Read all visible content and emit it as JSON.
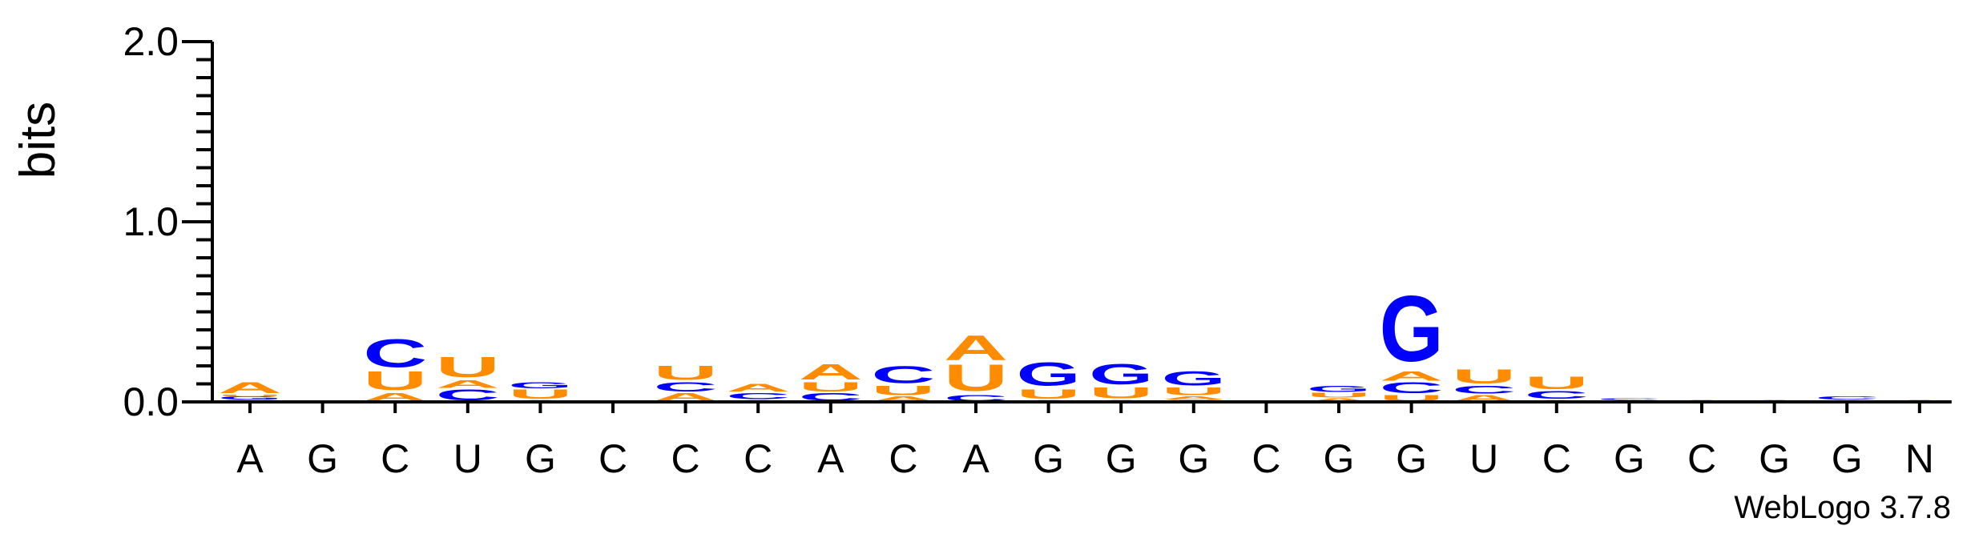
{
  "chart_data": {
    "type": "sequence-logo",
    "ylabel": "bits",
    "ylim": [
      0,
      2.0
    ],
    "yticks": [
      "0.0",
      "1.0",
      "2.0"
    ],
    "colors": {
      "A": "#ff8c00",
      "U": "#ff8c00",
      "C": "#0000ff",
      "G": "#0000ff"
    },
    "positions": [
      {
        "label": "A",
        "stack": [
          [
            "C",
            0.01
          ],
          [
            "G",
            0.02
          ],
          [
            "U",
            0.01
          ],
          [
            "A",
            0.07
          ]
        ]
      },
      {
        "label": "G",
        "stack": []
      },
      {
        "label": "C",
        "stack": [
          [
            "A",
            0.05
          ],
          [
            "U",
            0.12
          ],
          [
            "C",
            0.18
          ]
        ]
      },
      {
        "label": "U",
        "stack": [
          [
            "C",
            0.07
          ],
          [
            "A",
            0.05
          ],
          [
            "U",
            0.13
          ]
        ]
      },
      {
        "label": "G",
        "stack": [
          [
            "A",
            0.01
          ],
          [
            "U",
            0.06
          ],
          [
            "G",
            0.04
          ]
        ]
      },
      {
        "label": "C",
        "stack": []
      },
      {
        "label": "C",
        "stack": [
          [
            "A",
            0.05
          ],
          [
            "C",
            0.06
          ],
          [
            "U",
            0.09
          ]
        ]
      },
      {
        "label": "C",
        "stack": [
          [
            "A",
            0.01
          ],
          [
            "C",
            0.04
          ],
          [
            "A",
            0.05
          ]
        ]
      },
      {
        "label": "A",
        "stack": [
          [
            "C",
            0.05
          ],
          [
            "U",
            0.06
          ],
          [
            "A",
            0.1
          ]
        ]
      },
      {
        "label": "C",
        "stack": [
          [
            "A",
            0.03
          ],
          [
            "U",
            0.06
          ],
          [
            "C",
            0.11
          ]
        ]
      },
      {
        "label": "A",
        "stack": [
          [
            "C",
            0.04
          ],
          [
            "U",
            0.17
          ],
          [
            "A",
            0.16
          ]
        ]
      },
      {
        "label": "G",
        "stack": [
          [
            "A",
            0.01
          ],
          [
            "U",
            0.06
          ],
          [
            "G",
            0.15
          ]
        ]
      },
      {
        "label": "G",
        "stack": [
          [
            "A",
            0.01
          ],
          [
            "U",
            0.07
          ],
          [
            "G",
            0.13
          ]
        ]
      },
      {
        "label": "G",
        "stack": [
          [
            "C",
            0.01
          ],
          [
            "A",
            0.02
          ],
          [
            "U",
            0.05
          ],
          [
            "G",
            0.09
          ]
        ]
      },
      {
        "label": "C",
        "stack": []
      },
      {
        "label": "G",
        "stack": [
          [
            "A",
            0.02
          ],
          [
            "U",
            0.03
          ],
          [
            "G",
            0.04
          ]
        ]
      },
      {
        "label": "G",
        "stack": [
          [
            "U",
            0.04
          ],
          [
            "C",
            0.07
          ],
          [
            "A",
            0.06
          ],
          [
            "G",
            0.42
          ]
        ]
      },
      {
        "label": "U",
        "stack": [
          [
            "A",
            0.04
          ],
          [
            "C",
            0.05
          ],
          [
            "U",
            0.09
          ]
        ]
      },
      {
        "label": "C",
        "stack": [
          [
            "A",
            0.01
          ],
          [
            "C",
            0.05
          ],
          [
            "U",
            0.08
          ]
        ]
      },
      {
        "label": "G",
        "stack": [
          [
            "A",
            0.01
          ],
          [
            "C",
            0.01
          ]
        ]
      },
      {
        "label": "C",
        "stack": [
          [
            "A",
            0.01
          ]
        ]
      },
      {
        "label": "G",
        "stack": [
          [
            "A",
            0.01
          ]
        ]
      },
      {
        "label": "G",
        "stack": [
          [
            "A",
            0.01
          ],
          [
            "C",
            0.02
          ]
        ]
      },
      {
        "label": "N",
        "stack": [
          [
            "A",
            0.01
          ]
        ]
      }
    ]
  },
  "credit": "WebLogo 3.7.8"
}
